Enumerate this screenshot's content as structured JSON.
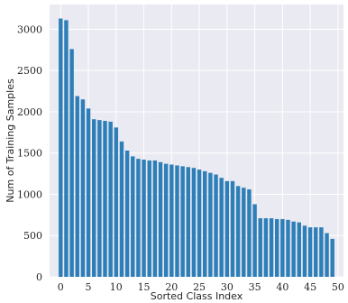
{
  "chart_data": {
    "type": "bar",
    "xlabel": "Sorted Class Index",
    "ylabel": "Num of Training Samples",
    "x": [
      0,
      1,
      2,
      3,
      4,
      5,
      6,
      7,
      8,
      9,
      10,
      11,
      12,
      13,
      14,
      15,
      16,
      17,
      18,
      19,
      20,
      21,
      22,
      23,
      24,
      25,
      26,
      27,
      28,
      29,
      30,
      31,
      32,
      33,
      34,
      35,
      36,
      37,
      38,
      39,
      40,
      41,
      42,
      43,
      44,
      45,
      46,
      47,
      48,
      49
    ],
    "values": [
      3130,
      3110,
      2760,
      2190,
      2150,
      2040,
      1910,
      1900,
      1890,
      1880,
      1810,
      1640,
      1530,
      1460,
      1430,
      1420,
      1410,
      1410,
      1390,
      1370,
      1360,
      1350,
      1340,
      1330,
      1320,
      1300,
      1280,
      1260,
      1240,
      1200,
      1160,
      1160,
      1100,
      1080,
      1060,
      880,
      710,
      710,
      710,
      700,
      700,
      690,
      670,
      660,
      620,
      600,
      600,
      600,
      530,
      460
    ],
    "xlim": [
      -2,
      51
    ],
    "ylim": [
      0,
      3300
    ],
    "xticks": [
      0,
      5,
      10,
      15,
      20,
      25,
      30,
      35,
      40,
      45,
      50
    ],
    "yticks": [
      0,
      500,
      1000,
      1500,
      2000,
      2500,
      3000
    ],
    "grid": true,
    "bar_color": "#2e7fb8",
    "background_color": "#eaeaf2",
    "grid_color": "#ffffff"
  }
}
